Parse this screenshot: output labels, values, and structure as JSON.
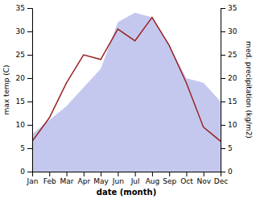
{
  "chart_data": {
    "type": "line",
    "categories": [
      "Jan",
      "Feb",
      "Mar",
      "Apr",
      "May",
      "Jun",
      "Jul",
      "Aug",
      "Sep",
      "Oct",
      "Nov",
      "Dec"
    ],
    "series": [
      {
        "type": "area",
        "axis": "y2",
        "color": "#c5c8ee",
        "values": [
          8,
          11,
          14,
          18,
          22,
          32,
          34,
          33,
          27,
          20,
          19,
          15
        ]
      },
      {
        "type": "line",
        "color": "#992222",
        "values": [
          6.5,
          11.5,
          19.0,
          25.0,
          24.0,
          30.5,
          28.0,
          33.0,
          27.0,
          19.0,
          9.5,
          6.5
        ]
      }
    ],
    "xlabel": "date (month)",
    "ylabel": "max temp (C)",
    "y2label": "med. precipitation (kg/m2)",
    "ylim": [
      0,
      35
    ],
    "yticks": [
      0,
      5,
      10,
      15,
      20,
      25,
      30,
      35
    ],
    "y2lim": [
      0,
      35
    ],
    "y2ticks": [
      0,
      5,
      10,
      15,
      20,
      25,
      30,
      35
    ],
    "grid": false
  }
}
